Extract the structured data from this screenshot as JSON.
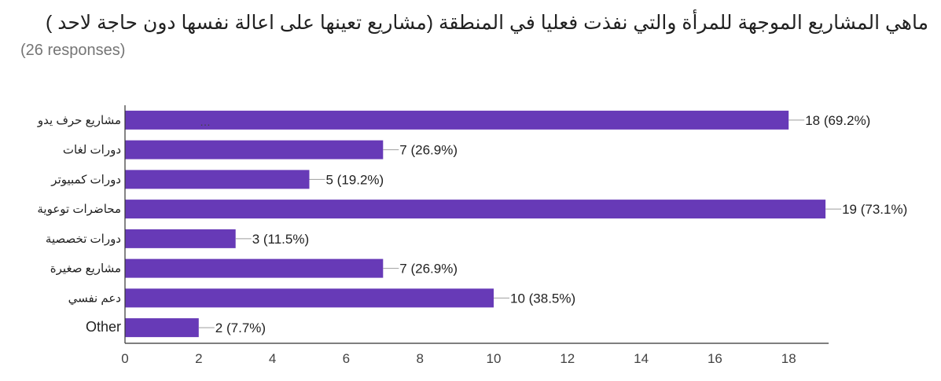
{
  "title": "ماهي المشاريع الموجهة للمرأة والتي نفذت فعليا في المنطقة (مشاريع تعينها على اعالة نفسها دون حاجة لاحد )",
  "subtitle": "(26 responses)",
  "chart_data": {
    "type": "bar",
    "orientation": "horizontal",
    "title": "ماهي المشاريع الموجهة للمرأة والتي نفذت فعليا في المنطقة (مشاريع تعينها على اعالة نفسها دون حاجة لاحد )",
    "subtitle": "(26 responses)",
    "categories": [
      "مشاريع حرف يدو",
      "دورات لغات",
      "دورات كمبيوتر",
      "محاضرات توعوية",
      "دورات تخصصية",
      "مشاريع صغيرة",
      "دعم نفسي",
      "Other"
    ],
    "category_ellipsis": [
      "…",
      "",
      "",
      "",
      "",
      "",
      "",
      ""
    ],
    "values": [
      18,
      7,
      5,
      19,
      3,
      7,
      10,
      2
    ],
    "data_labels": [
      "18 (69.2%)",
      "7 (26.9%)",
      "5 (19.2%)",
      "19 (73.1%)",
      "3 (11.5%)",
      "7 (26.9%)",
      "10 (38.5%)",
      "2 (7.7%)"
    ],
    "xlim": [
      0,
      19
    ],
    "xticks": [
      0,
      2,
      4,
      6,
      8,
      10,
      12,
      14,
      16,
      18
    ],
    "xtick_labels": [
      "0",
      "2",
      "4",
      "6",
      "8",
      "10",
      "12",
      "14",
      "16",
      "18"
    ],
    "grid": false,
    "legend": "none",
    "colors": {
      "bar": "#673ab7",
      "axis": "#333333",
      "connector": "#9e9e9e"
    }
  }
}
